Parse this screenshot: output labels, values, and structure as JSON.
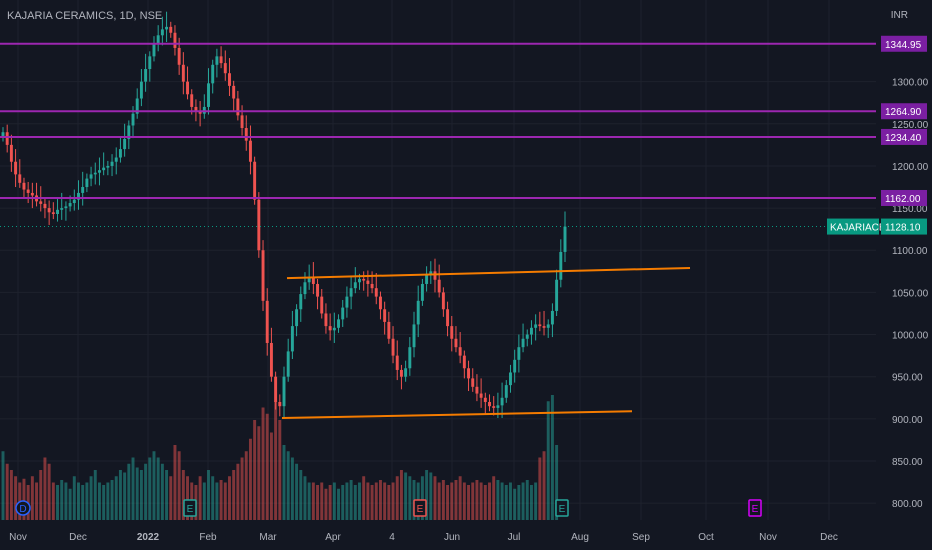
{
  "header": {
    "symbol_title": "KAJARIA CERAMICS, 1D, NSE",
    "currency": "INR"
  },
  "chart_data": {
    "type": "candlestick",
    "title": "KAJARIA CERAMICS, 1D, NSE",
    "ylim": [
      780,
      1385
    ],
    "y_ticks": [
      "800.00",
      "850.00",
      "900.00",
      "950.00",
      "1000.00",
      "1050.00",
      "1100.00",
      "1150.00",
      "1200.00",
      "1250.00",
      "1300.00"
    ],
    "x_ticks": [
      "Nov",
      "Dec",
      "2022",
      "Feb",
      "Mar",
      "Apr",
      "4",
      "Jun",
      "Jul",
      "Aug",
      "Sep",
      "Oct",
      "Nov",
      "Dec"
    ],
    "horizontal_levels": [
      {
        "value": 1344.95,
        "label": "1344.95"
      },
      {
        "value": 1264.9,
        "label": "1264.90"
      },
      {
        "value": 1234.4,
        "label": "1234.40"
      },
      {
        "value": 1162.0,
        "label": "1162.00"
      }
    ],
    "last_price": {
      "ticker": "KAJARIACER",
      "value": 1128.1,
      "label": "1128.10"
    },
    "trendlines": [
      {
        "from": [
          "2022-03-13",
          1067
        ],
        "to": [
          "2022-09-20",
          1079
        ]
      },
      {
        "from": [
          "2022-03-07",
          901
        ],
        "to": [
          "2022-08-15",
          909
        ]
      }
    ],
    "series": [
      {
        "name": "price",
        "values": [
          1240,
          1225,
          1205,
          1190,
          1180,
          1172,
          1168,
          1165,
          1158,
          1155,
          1150,
          1145,
          1143,
          1148,
          1150,
          1152,
          1156,
          1160,
          1168,
          1175,
          1185,
          1190,
          1192,
          1195,
          1198,
          1200,
          1205,
          1210,
          1220,
          1232,
          1248,
          1262,
          1280,
          1300,
          1315,
          1330,
          1345,
          1355,
          1362,
          1365,
          1358,
          1340,
          1320,
          1300,
          1285,
          1270,
          1265,
          1262,
          1270,
          1298,
          1320,
          1330,
          1322,
          1310,
          1295,
          1280,
          1260,
          1245,
          1230,
          1205,
          1160,
          1100,
          1040,
          990,
          950,
          920,
          915,
          950,
          980,
          1010,
          1030,
          1048,
          1062,
          1068,
          1060,
          1045,
          1025,
          1010,
          1005,
          1008,
          1018,
          1032,
          1045,
          1055,
          1062,
          1066,
          1064,
          1060,
          1055,
          1045,
          1030,
          1015,
          995,
          975,
          958,
          950,
          960,
          985,
          1012,
          1040,
          1060,
          1072,
          1075,
          1065,
          1050,
          1030,
          1010,
          995,
          985,
          975,
          960,
          948,
          938,
          930,
          925,
          920,
          915,
          913,
          916,
          925,
          940,
          955,
          970,
          985,
          995,
          1000,
          1008,
          1012,
          1010,
          1008,
          1012,
          1028,
          1065,
          1098,
          1128
        ]
      },
      {
        "name": "volume",
        "values": [
          0.55,
          0.45,
          0.4,
          0.35,
          0.3,
          0.33,
          0.28,
          0.35,
          0.3,
          0.4,
          0.5,
          0.45,
          0.3,
          0.28,
          0.32,
          0.3,
          0.25,
          0.35,
          0.3,
          0.28,
          0.3,
          0.35,
          0.4,
          0.3,
          0.28,
          0.3,
          0.32,
          0.35,
          0.4,
          0.38,
          0.45,
          0.5,
          0.42,
          0.4,
          0.45,
          0.5,
          0.55,
          0.5,
          0.45,
          0.4,
          0.35,
          0.6,
          0.55,
          0.4,
          0.35,
          0.3,
          0.28,
          0.35,
          0.3,
          0.4,
          0.35,
          0.3,
          0.32,
          0.3,
          0.35,
          0.4,
          0.45,
          0.5,
          0.55,
          0.65,
          0.8,
          0.75,
          0.9,
          0.85,
          0.7,
          0.95,
          0.8,
          0.6,
          0.55,
          0.5,
          0.45,
          0.4,
          0.35,
          0.3,
          0.3,
          0.28,
          0.3,
          0.25,
          0.28,
          0.3,
          0.25,
          0.28,
          0.3,
          0.32,
          0.28,
          0.3,
          0.35,
          0.3,
          0.28,
          0.3,
          0.32,
          0.3,
          0.28,
          0.3,
          0.35,
          0.4,
          0.38,
          0.35,
          0.32,
          0.3,
          0.35,
          0.4,
          0.38,
          0.35,
          0.3,
          0.32,
          0.28,
          0.3,
          0.32,
          0.35,
          0.3,
          0.28,
          0.3,
          0.32,
          0.3,
          0.28,
          0.3,
          0.35,
          0.32,
          0.3,
          0.28,
          0.3,
          0.25,
          0.28,
          0.3,
          0.32,
          0.28,
          0.3,
          0.5,
          0.55,
          0.95,
          1.0,
          0.6
        ]
      }
    ],
    "events": [
      {
        "label": "D",
        "date": "2021-11-01",
        "kind": "dividend"
      },
      {
        "label": "E",
        "date": "2022-01-24",
        "kind": "earnings"
      },
      {
        "label": "E",
        "date": "2022-05-20",
        "kind": "earnings"
      },
      {
        "label": "E",
        "date": "2022-07-20",
        "kind": "earnings"
      },
      {
        "label": "E",
        "date": "2022-10-20",
        "kind": "earnings-upcoming"
      }
    ],
    "colors": {
      "up": "#26a69a",
      "down": "#ef5350",
      "level": "#9c27b0",
      "trendline": "#f57c00",
      "grid": "#1e222d",
      "text": "#b2b5be",
      "last_price": "#089981"
    }
  }
}
